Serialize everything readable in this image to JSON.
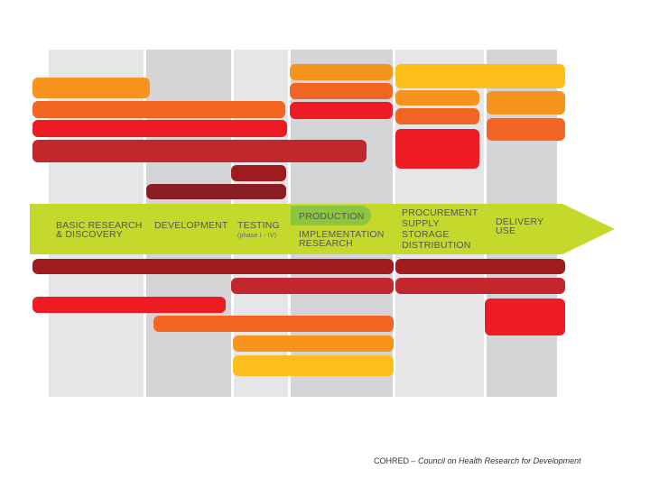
{
  "stages": {
    "basic_research": [
      "BASIC RESEARCH",
      "& DISCOVERY"
    ],
    "development": "DEVELOPMENT",
    "testing": "TESTING",
    "testing_phase": "(phase I - IV)",
    "production": "PRODUCTION",
    "implementation": [
      "IMPLEMENTATION",
      "RESEARCH"
    ],
    "procurement": [
      "PROCUREMENT",
      "SUPPLY",
      "STORAGE",
      "DISTRIBUTION"
    ],
    "delivery": [
      "DELIVERY",
      "USE"
    ]
  },
  "footer": {
    "org": "COHRED –",
    "full_name": "Council on Health Research for Development"
  },
  "colors": {
    "arrow_green": "#c5d92d",
    "production_green": "#8cc63f",
    "column_light": "#e6e6e8",
    "column_dark": "#d5d5d7",
    "yellow": "#ffbf1a",
    "orange": "#f7941d",
    "orange_red": "#f26522",
    "red": "#ed1c24",
    "crimson": "#c1272d",
    "dark_red": "#9e1b20"
  }
}
